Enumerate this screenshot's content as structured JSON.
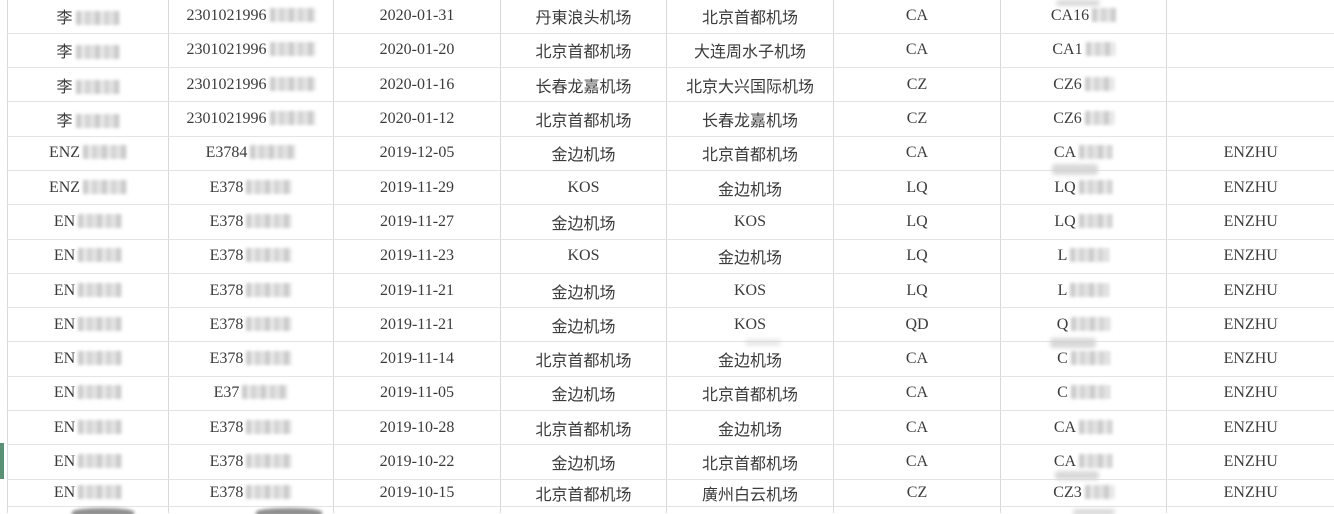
{
  "colors": {
    "vertical_grid": "#d9d9d9",
    "horizontal_grid": "#e3e3e3",
    "text": "#3b3b3b",
    "highlight_green": "#5a9074"
  },
  "table": {
    "partial_row_visible": true,
    "rows": [
      {
        "name": {
          "text": "李",
          "redacted": true
        },
        "id": {
          "text": "2301021996",
          "redacted": true
        },
        "date": "2020-01-31",
        "from": "丹東浪头机场",
        "to": "北京首都机场",
        "airline": "CA",
        "flight": {
          "text": "CA16",
          "redacted": true
        },
        "remark": ""
      },
      {
        "name": {
          "text": "李",
          "redacted": true
        },
        "id": {
          "text": "2301021996",
          "redacted": true
        },
        "date": "2020-01-20",
        "from": "北京首都机场",
        "to": "大连周水子机场",
        "airline": "CA",
        "flight": {
          "text": "CA1",
          "redacted": true
        },
        "remark": ""
      },
      {
        "name": {
          "text": "李",
          "redacted": true
        },
        "id": {
          "text": "2301021996",
          "redacted": true
        },
        "date": "2020-01-16",
        "from": "长春龙嘉机场",
        "to": "北京大兴国际机场",
        "airline": "CZ",
        "flight": {
          "text": "CZ6",
          "redacted": true
        },
        "remark": ""
      },
      {
        "name": {
          "text": "李",
          "redacted": true
        },
        "id": {
          "text": "2301021996",
          "redacted": true
        },
        "date": "2020-01-12",
        "from": "北京首都机场",
        "to": "长春龙嘉机场",
        "airline": "CZ",
        "flight": {
          "text": "CZ6",
          "redacted": true
        },
        "remark": ""
      },
      {
        "name": {
          "text": "ENZ",
          "redacted": true
        },
        "id": {
          "text": "E3784",
          "redacted": true
        },
        "date": "2019-12-05",
        "from": "金边机场",
        "to": "北京首都机场",
        "airline": "CA",
        "flight": {
          "text": "CA",
          "redacted": true
        },
        "remark": "ENZHU"
      },
      {
        "name": {
          "text": "ENZ",
          "redacted": true
        },
        "id": {
          "text": "E378",
          "redacted": true
        },
        "date": "2019-11-29",
        "from": "KOS",
        "to": "金边机场",
        "airline": "LQ",
        "flight": {
          "text": "LQ",
          "redacted": true
        },
        "remark": "ENZHU"
      },
      {
        "name": {
          "text": "EN",
          "redacted": true
        },
        "id": {
          "text": "E378",
          "redacted": true
        },
        "date": "2019-11-27",
        "from": "金边机场",
        "to": "KOS",
        "airline": "LQ",
        "flight": {
          "text": "LQ",
          "redacted": true
        },
        "remark": "ENZHU"
      },
      {
        "name": {
          "text": "EN",
          "redacted": true
        },
        "id": {
          "text": "E378",
          "redacted": true
        },
        "date": "2019-11-23",
        "from": "KOS",
        "to": "金边机场",
        "airline": "LQ",
        "flight": {
          "text": "L",
          "redacted": true
        },
        "remark": "ENZHU"
      },
      {
        "name": {
          "text": "EN",
          "redacted": true
        },
        "id": {
          "text": "E378",
          "redacted": true
        },
        "date": "2019-11-21",
        "from": "金边机场",
        "to": "KOS",
        "airline": "LQ",
        "flight": {
          "text": "L",
          "redacted": true
        },
        "remark": "ENZHU"
      },
      {
        "name": {
          "text": "EN",
          "redacted": true
        },
        "id": {
          "text": "E378",
          "redacted": true
        },
        "date": "2019-11-21",
        "from": "金边机场",
        "to": "KOS",
        "airline": "QD",
        "flight": {
          "text": "Q",
          "redacted": true
        },
        "remark": "ENZHU"
      },
      {
        "name": {
          "text": "EN",
          "redacted": true
        },
        "id": {
          "text": "E378",
          "redacted": true
        },
        "date": "2019-11-14",
        "from": "北京首都机场",
        "to": "金边机场",
        "airline": "CA",
        "flight": {
          "text": "C",
          "redacted": true
        },
        "remark": "ENZHU"
      },
      {
        "name": {
          "text": "EN",
          "redacted": true
        },
        "id": {
          "text": "E37",
          "redacted": true
        },
        "date": "2019-11-05",
        "from": "金边机场",
        "to": "北京首都机场",
        "airline": "CA",
        "flight": {
          "text": "C",
          "redacted": true
        },
        "remark": "ENZHU"
      },
      {
        "name": {
          "text": "EN",
          "redacted": true
        },
        "id": {
          "text": "E378",
          "redacted": true
        },
        "date": "2019-10-28",
        "from": "北京首都机场",
        "to": "金边机场",
        "airline": "CA",
        "flight": {
          "text": "CA",
          "redacted": true
        },
        "remark": "ENZHU"
      },
      {
        "name": {
          "text": "EN",
          "redacted": true
        },
        "id": {
          "text": "E378",
          "redacted": true
        },
        "date": "2019-10-22",
        "from": "金边机场",
        "to": "北京首都机场",
        "airline": "CA",
        "flight": {
          "text": "CA",
          "redacted": true
        },
        "remark": "ENZHU",
        "highlighted": true
      },
      {
        "name": {
          "text": "EN",
          "redacted": true
        },
        "id": {
          "text": "E378",
          "redacted": true
        },
        "date": "2019-10-15",
        "from": "北京首都机场",
        "to": "廣州白云机场",
        "airline": "CZ",
        "flight": {
          "text": "CZ3",
          "redacted": true
        },
        "remark": "ENZHU"
      }
    ]
  }
}
